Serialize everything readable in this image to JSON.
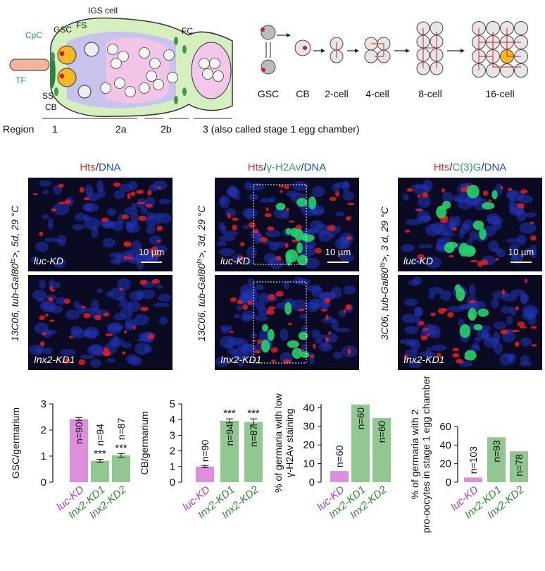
{
  "germarium_diagram": {
    "labels": {
      "igs": "IGS cell",
      "fs": "FS",
      "gsc": "GSC",
      "cpc": "CpC",
      "tf": "TF",
      "ss": "SS",
      "cb": "CB",
      "fc": "FC"
    },
    "region_title": "Region",
    "regions": [
      "1",
      "2a",
      "2b",
      "3 (also called stage 1 egg chamber)"
    ]
  },
  "lineage": {
    "stages": [
      "GSC",
      "CB",
      "2-cell",
      "4-cell",
      "8-cell",
      "16-cell"
    ]
  },
  "micrographs": [
    {
      "stain": [
        {
          "text": "Hts",
          "color": "#e8332a"
        },
        {
          "text": "/",
          "color": "#222222"
        },
        {
          "text": "DNA",
          "color": "#1f4fd8"
        }
      ],
      "genotype": [
        "13C06, tub-Gal80",
        "ts",
        ">, 5d, 29 °C"
      ],
      "scale_bar": "10 µm",
      "conditions": [
        "luc-KD",
        "Inx2-KD1"
      ]
    },
    {
      "stain": [
        {
          "text": "Hts",
          "color": "#e8332a"
        },
        {
          "text": "/",
          "color": "#222222"
        },
        {
          "text": "γ-H2Av",
          "color": "#2fa84f"
        },
        {
          "text": "/",
          "color": "#222222"
        },
        {
          "text": "DNA",
          "color": "#1f4fd8"
        }
      ],
      "genotype": [
        "13C06, tub-Gal80",
        "ts",
        ">, 3d, 29 °C"
      ],
      "scale_bar": "10 µm",
      "conditions": [
        "luc-KD",
        "Inx2-KD1"
      ]
    },
    {
      "stain": [
        {
          "text": "Hts",
          "color": "#e8332a"
        },
        {
          "text": "/",
          "color": "#222222"
        },
        {
          "text": "C(3)G",
          "color": "#2fa84f"
        },
        {
          "text": "/",
          "color": "#222222"
        },
        {
          "text": "DNA",
          "color": "#1f4fd8"
        }
      ],
      "genotype": [
        "3C06, tub-Gal80",
        "ts",
        ">, 3 d, 29 °C"
      ],
      "scale_bar": "10 µm",
      "conditions": [
        "luc-KD",
        "Inx2-KD1"
      ]
    }
  ],
  "chart_data": [
    {
      "type": "bar",
      "ylabel": [
        "GSC/germarium"
      ],
      "categories": [
        "luc-KD",
        "Inx2-KD1",
        "Inx2-KD2"
      ],
      "values": [
        2.42,
        0.82,
        1.03
      ],
      "errors": [
        0.06,
        0.06,
        0.07
      ],
      "colors": [
        "#dd8fdd",
        "#91c891",
        "#91c891"
      ],
      "category_colors": [
        "#b23cb2",
        "#2e8b2e",
        "#2e8b2e"
      ],
      "annotations": [
        "n=90",
        "n=94",
        "n=87"
      ],
      "significance": [
        null,
        "***",
        "***"
      ],
      "ylim": [
        0,
        3
      ],
      "yticks": [
        0,
        1,
        2,
        3
      ]
    },
    {
      "type": "bar",
      "ylabel": [
        "CB/germarium"
      ],
      "categories": [
        "luc-KD",
        "Inx2-KD1",
        "Inx2-KD2"
      ],
      "values": [
        1.0,
        3.92,
        3.85
      ],
      "errors": [
        0.07,
        0.13,
        0.2
      ],
      "colors": [
        "#dd8fdd",
        "#91c891",
        "#91c891"
      ],
      "category_colors": [
        "#b23cb2",
        "#2e8b2e",
        "#2e8b2e"
      ],
      "annotations": [
        "n=90",
        "n=94",
        "n=87"
      ],
      "significance": [
        null,
        "***",
        "***"
      ],
      "ylim": [
        0,
        5
      ],
      "yticks": [
        0,
        1,
        2,
        3,
        4,
        5
      ]
    },
    {
      "type": "bar",
      "ylabel": [
        "% of germaria with low",
        "γ-H2Av staining"
      ],
      "categories": [
        "luc-KD",
        "Inx2-KD1",
        "Inx2-KD2"
      ],
      "values": [
        6,
        41.7,
        34.5
      ],
      "colors": [
        "#dd8fdd",
        "#91c891",
        "#91c891"
      ],
      "category_colors": [
        "#b23cb2",
        "#2e8b2e",
        "#2e8b2e"
      ],
      "annotations": [
        "n=60",
        "n=60",
        "n=60"
      ],
      "ylim": [
        0,
        42
      ],
      "yticks": [
        0,
        10,
        20,
        30,
        40
      ]
    },
    {
      "type": "bar",
      "ylabel": [
        "% of germaria with 2",
        "pro-oocytes in stage 1 egg chamber"
      ],
      "categories": [
        "luc-KD",
        "Inx2-KD1",
        "Inx2-KD2"
      ],
      "values": [
        5,
        48.4,
        33.3
      ],
      "colors": [
        "#dd8fdd",
        "#91c891",
        "#91c891"
      ],
      "category_colors": [
        "#b23cb2",
        "#2e8b2e",
        "#2e8b2e"
      ],
      "annotations": [
        "n=103",
        "n=93",
        "n=78"
      ],
      "ylim": [
        0,
        60
      ],
      "yticks": [
        0,
        20,
        40,
        60
      ]
    }
  ]
}
